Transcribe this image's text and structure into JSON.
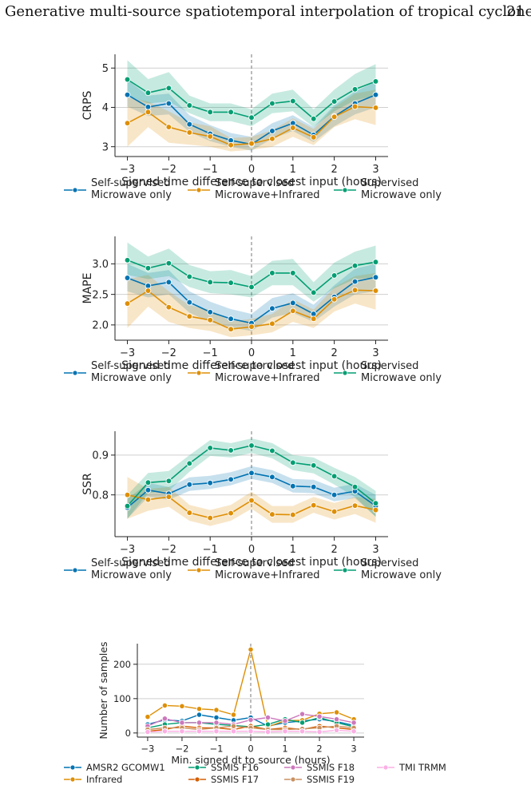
{
  "page_header": {
    "title": "Generative multi-source spatiotemporal interpolation of tropical cyclones",
    "page_number": "21"
  },
  "chart_data": [
    {
      "type": "line",
      "id": "crps",
      "ylabel": "CRPS",
      "xlabel": "Signed time difference to closest input (hours)",
      "xlim": [
        -3.3,
        3.3
      ],
      "ylim": [
        2.75,
        5.35
      ],
      "xticks": [
        -3,
        -2,
        -1,
        0,
        1,
        2,
        3
      ],
      "yticks": [
        3,
        4,
        5
      ],
      "grid": "horizontal",
      "x": [
        -3,
        -2.5,
        -2,
        -1.5,
        -1,
        -0.5,
        0,
        0.5,
        1,
        1.5,
        2,
        2.5,
        3
      ],
      "series": [
        {
          "name": "Self-supervised\nMicrowave only",
          "color": "#0173b2",
          "values": [
            4.32,
            4.01,
            4.1,
            3.57,
            3.33,
            3.16,
            3.06,
            3.4,
            3.6,
            3.3,
            3.77,
            4.1,
            4.32
          ],
          "lower": [
            4.02,
            3.78,
            3.82,
            3.38,
            3.14,
            3.0,
            2.9,
            3.2,
            3.4,
            3.12,
            3.52,
            3.82,
            4.0
          ],
          "upper": [
            4.7,
            4.3,
            4.35,
            3.8,
            3.55,
            3.35,
            3.25,
            3.6,
            3.8,
            3.5,
            4.05,
            4.4,
            4.65
          ]
        },
        {
          "name": "Self-supervised\nMicrowave+Infrared",
          "color": "#de8f05",
          "values": [
            3.6,
            3.88,
            3.5,
            3.36,
            3.26,
            3.04,
            3.08,
            3.2,
            3.48,
            3.24,
            3.76,
            4.02,
            3.99
          ],
          "lower": [
            3.0,
            3.5,
            3.1,
            3.05,
            3.0,
            2.88,
            2.92,
            3.0,
            3.25,
            3.04,
            3.5,
            3.7,
            3.55
          ],
          "upper": [
            4.25,
            4.15,
            3.9,
            3.62,
            3.52,
            3.22,
            3.25,
            3.42,
            3.72,
            3.45,
            4.0,
            4.35,
            4.45
          ]
        },
        {
          "name": "Supervised\nMicrowave only",
          "color": "#029e73",
          "values": [
            4.71,
            4.37,
            4.49,
            4.05,
            3.88,
            3.88,
            3.74,
            4.1,
            4.16,
            3.71,
            4.15,
            4.46,
            4.66
          ],
          "lower": [
            4.3,
            4.1,
            4.15,
            3.85,
            3.65,
            3.65,
            3.52,
            3.85,
            3.9,
            3.5,
            3.9,
            4.18,
            4.3
          ],
          "upper": [
            5.2,
            4.72,
            4.9,
            4.3,
            4.1,
            4.1,
            3.95,
            4.35,
            4.45,
            3.95,
            4.45,
            4.85,
            5.1
          ]
        }
      ]
    },
    {
      "type": "line",
      "id": "mape",
      "ylabel": "MAPE",
      "xlabel": "Signed time difference to closest input (hours)",
      "xlim": [
        -3.3,
        3.3
      ],
      "ylim": [
        1.75,
        3.45
      ],
      "xticks": [
        -3,
        -2,
        -1,
        0,
        1,
        2,
        3
      ],
      "yticks": [
        2.0,
        2.5,
        3.0
      ],
      "ytick_labels": [
        "2.0",
        "2.5",
        "3.0"
      ],
      "grid": "horizontal",
      "x": [
        -3,
        -2.5,
        -2,
        -1.5,
        -1,
        -0.5,
        0,
        0.5,
        1,
        1.5,
        2,
        2.5,
        3
      ],
      "series": [
        {
          "name": "Self-supervised\nMicrowave only",
          "color": "#0173b2",
          "values": [
            2.77,
            2.64,
            2.7,
            2.37,
            2.21,
            2.1,
            2.03,
            2.27,
            2.36,
            2.18,
            2.46,
            2.71,
            2.78
          ],
          "lower": [
            2.55,
            2.45,
            2.5,
            2.2,
            2.05,
            1.96,
            1.9,
            2.12,
            2.2,
            2.05,
            2.3,
            2.5,
            2.55
          ],
          "upper": [
            3.0,
            2.85,
            2.9,
            2.55,
            2.38,
            2.26,
            2.18,
            2.44,
            2.52,
            2.33,
            2.65,
            2.92,
            3.0
          ]
        },
        {
          "name": "Self-supervised\nMicrowave+Infrared",
          "color": "#de8f05",
          "values": [
            2.35,
            2.56,
            2.29,
            2.14,
            2.08,
            1.93,
            1.97,
            2.02,
            2.23,
            2.1,
            2.42,
            2.57,
            2.56
          ],
          "lower": [
            1.95,
            2.3,
            2.05,
            1.95,
            1.9,
            1.8,
            1.83,
            1.88,
            2.05,
            1.95,
            2.22,
            2.35,
            2.25
          ],
          "upper": [
            2.75,
            2.82,
            2.55,
            2.32,
            2.25,
            2.06,
            2.1,
            2.18,
            2.42,
            2.25,
            2.62,
            2.8,
            2.85
          ]
        },
        {
          "name": "Supervised\nMicrowave only",
          "color": "#029e73",
          "values": [
            3.06,
            2.93,
            3.01,
            2.79,
            2.7,
            2.69,
            2.62,
            2.85,
            2.85,
            2.53,
            2.81,
            2.97,
            3.03
          ],
          "lower": [
            2.82,
            2.75,
            2.8,
            2.62,
            2.52,
            2.5,
            2.45,
            2.65,
            2.65,
            2.38,
            2.6,
            2.75,
            2.78
          ],
          "upper": [
            3.35,
            3.12,
            3.25,
            2.98,
            2.88,
            2.9,
            2.8,
            3.05,
            3.08,
            2.7,
            3.02,
            3.2,
            3.3
          ]
        }
      ]
    },
    {
      "type": "line",
      "id": "ssr",
      "ylabel": "SSR",
      "xlabel": "Signed time difference to closest input (hours)",
      "xlim": [
        -3.3,
        3.3
      ],
      "ylim": [
        0.695,
        0.96
      ],
      "xticks": [
        -3,
        -2,
        -1,
        0,
        1,
        2,
        3
      ],
      "yticks": [
        0.8,
        0.9
      ],
      "ytick_labels": [
        "0.8",
        "0.9"
      ],
      "grid": "horizontal",
      "x": [
        -3,
        -2.5,
        -2,
        -1.5,
        -1,
        -0.5,
        0,
        0.5,
        1,
        1.5,
        2,
        2.5,
        3
      ],
      "series": [
        {
          "name": "Self-supervised\nMicrowave only",
          "color": "#0173b2",
          "values": [
            0.768,
            0.812,
            0.803,
            0.826,
            0.83,
            0.839,
            0.855,
            0.845,
            0.822,
            0.82,
            0.8,
            0.809,
            0.772
          ],
          "lower": [
            0.74,
            0.795,
            0.788,
            0.81,
            0.815,
            0.824,
            0.84,
            0.83,
            0.806,
            0.804,
            0.784,
            0.792,
            0.745
          ],
          "upper": [
            0.79,
            0.83,
            0.82,
            0.844,
            0.848,
            0.857,
            0.872,
            0.862,
            0.84,
            0.838,
            0.818,
            0.828,
            0.8
          ]
        },
        {
          "name": "Self-supervised\nMicrowave+Infrared",
          "color": "#de8f05",
          "values": [
            0.8,
            0.788,
            0.795,
            0.755,
            0.742,
            0.754,
            0.786,
            0.751,
            0.75,
            0.774,
            0.758,
            0.773,
            0.762
          ],
          "lower": [
            0.74,
            0.76,
            0.77,
            0.735,
            0.722,
            0.735,
            0.765,
            0.73,
            0.73,
            0.755,
            0.738,
            0.752,
            0.73
          ],
          "upper": [
            0.845,
            0.815,
            0.82,
            0.775,
            0.762,
            0.775,
            0.808,
            0.772,
            0.772,
            0.795,
            0.78,
            0.795,
            0.79
          ]
        },
        {
          "name": "Supervised\nMicrowave only",
          "color": "#029e73",
          "values": [
            0.772,
            0.831,
            0.835,
            0.879,
            0.918,
            0.912,
            0.924,
            0.911,
            0.881,
            0.874,
            0.847,
            0.82,
            0.779
          ],
          "lower": [
            0.74,
            0.805,
            0.81,
            0.858,
            0.898,
            0.894,
            0.905,
            0.892,
            0.862,
            0.854,
            0.826,
            0.795,
            0.745
          ],
          "upper": [
            0.8,
            0.855,
            0.86,
            0.9,
            0.938,
            0.93,
            0.942,
            0.93,
            0.9,
            0.894,
            0.868,
            0.845,
            0.81
          ]
        }
      ]
    },
    {
      "type": "line",
      "id": "samples",
      "ylabel": "Number of samples",
      "xlabel": "Min. signed dt to source (hours)",
      "xlim": [
        -3.3,
        3.3
      ],
      "ylim": [
        -12,
        260
      ],
      "xticks": [
        -3,
        -2,
        -1,
        0,
        1,
        2,
        3
      ],
      "yticks": [
        0,
        100,
        200
      ],
      "grid": "horizontal",
      "x": [
        -3,
        -2.5,
        -2,
        -1.5,
        -1,
        -0.5,
        0,
        0.5,
        1,
        1.5,
        2,
        2.5,
        3
      ],
      "series": [
        {
          "name": "AMSR2 GCOMW1",
          "color": "#0173b2",
          "values": [
            25,
            38,
            35,
            53,
            45,
            37,
            45,
            20,
            30,
            35,
            40,
            33,
            22
          ]
        },
        {
          "name": "Infrared",
          "color": "#de8f05",
          "values": [
            47,
            80,
            78,
            70,
            67,
            53,
            243,
            18,
            36,
            37,
            56,
            60,
            40
          ]
        },
        {
          "name": "SSMIS F16",
          "color": "#029e73",
          "values": [
            15,
            25,
            30,
            30,
            25,
            22,
            18,
            25,
            40,
            30,
            45,
            30,
            18
          ]
        },
        {
          "name": "SSMIS F17",
          "color": "#d55e00",
          "values": [
            5,
            10,
            20,
            15,
            15,
            10,
            20,
            10,
            15,
            10,
            20,
            15,
            10
          ]
        },
        {
          "name": "SSMIS F18",
          "color": "#cc78bc",
          "values": [
            20,
            42,
            30,
            30,
            30,
            25,
            38,
            45,
            35,
            55,
            48,
            40,
            30
          ]
        },
        {
          "name": "SSMIS F19",
          "color": "#ca9161",
          "values": [
            10,
            15,
            15,
            10,
            15,
            20,
            15,
            10,
            10,
            12,
            15,
            20,
            15
          ]
        },
        {
          "name": "TMI TRMM",
          "color": "#fbafe4",
          "values": [
            3,
            5,
            5,
            5,
            5,
            5,
            5,
            3,
            5,
            5,
            3,
            8,
            5
          ]
        }
      ]
    }
  ]
}
